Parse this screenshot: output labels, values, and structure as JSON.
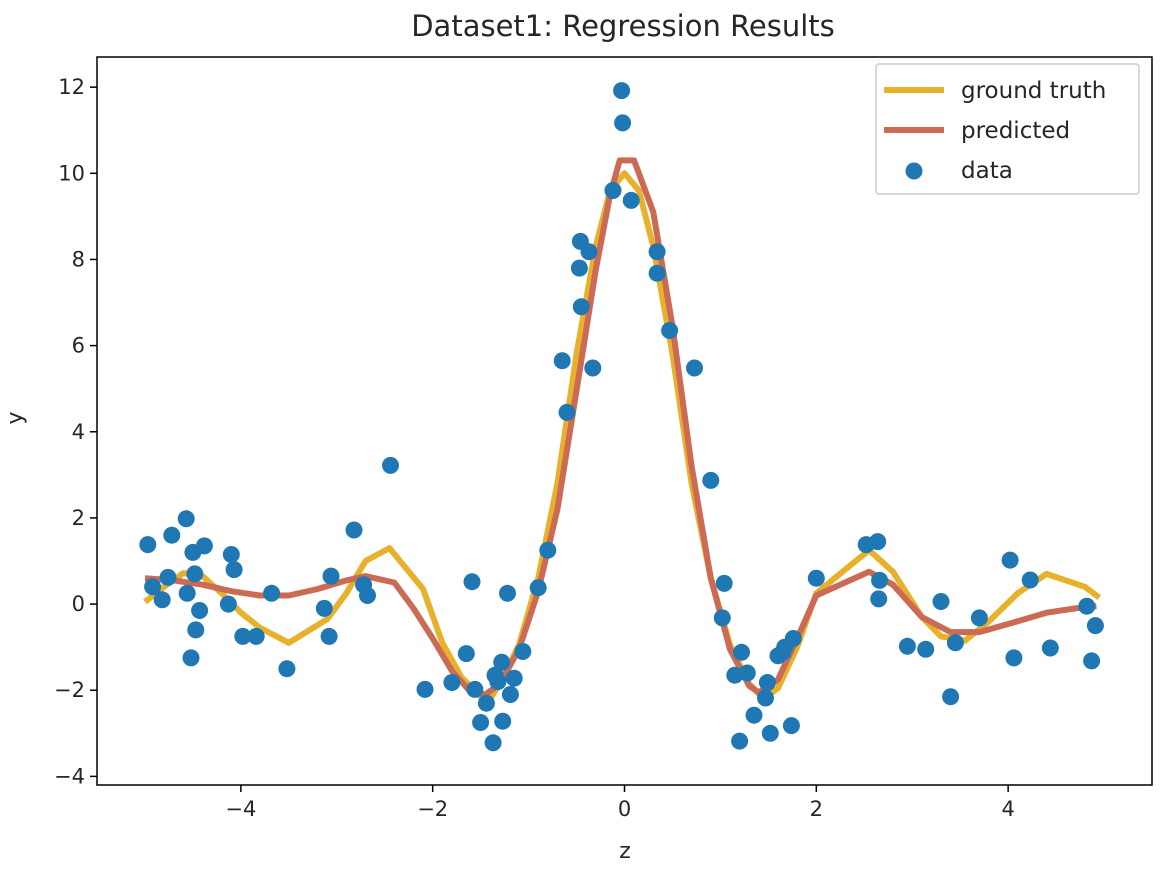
{
  "chart_data": {
    "type": "line",
    "title": "Dataset1: Regression Results",
    "xlabel": "z",
    "ylabel": "y",
    "xlim": [
      -5.5,
      5.5
    ],
    "ylim": [
      -4.2,
      12.7
    ],
    "x_ticks": [
      -4,
      -2,
      0,
      2,
      4
    ],
    "x_tick_labels": [
      "−4",
      "−2",
      "0",
      "2",
      "4"
    ],
    "y_ticks": [
      -4,
      -2,
      0,
      2,
      4,
      6,
      8,
      10,
      12
    ],
    "y_tick_labels": [
      "−4",
      "−2",
      "0",
      "2",
      "4",
      "6",
      "8",
      "10",
      "12"
    ],
    "grid": false,
    "legend_position": "top-right",
    "colors": {
      "ground_truth": "#e8b12b",
      "predicted": "#cc6b55",
      "data": "#1f77b4",
      "axes": "#000000"
    },
    "series": [
      {
        "name": "ground truth",
        "kind": "line",
        "points": [
          [
            -5.0,
            0.05
          ],
          [
            -4.8,
            0.4
          ],
          [
            -4.6,
            0.72
          ],
          [
            -4.4,
            0.65
          ],
          [
            -4.2,
            0.25
          ],
          [
            -4.0,
            -0.2
          ],
          [
            -3.8,
            -0.55
          ],
          [
            -3.5,
            -0.9
          ],
          [
            -3.1,
            -0.35
          ],
          [
            -2.9,
            0.25
          ],
          [
            -2.7,
            1.0
          ],
          [
            -2.45,
            1.3
          ],
          [
            -2.1,
            0.35
          ],
          [
            -1.9,
            -0.9
          ],
          [
            -1.7,
            -1.7
          ],
          [
            -1.5,
            -2.15
          ],
          [
            -1.4,
            -2.2
          ],
          [
            -1.3,
            -1.85
          ],
          [
            -1.1,
            -0.95
          ],
          [
            -0.9,
            0.6
          ],
          [
            -0.7,
            2.8
          ],
          [
            -0.5,
            5.8
          ],
          [
            -0.3,
            8.3
          ],
          [
            -0.15,
            9.6
          ],
          [
            0.0,
            10.0
          ],
          [
            0.15,
            9.6
          ],
          [
            0.3,
            8.3
          ],
          [
            0.5,
            5.8
          ],
          [
            0.7,
            2.8
          ],
          [
            0.9,
            0.6
          ],
          [
            1.1,
            -0.95
          ],
          [
            1.3,
            -1.85
          ],
          [
            1.45,
            -2.2
          ],
          [
            1.6,
            -1.95
          ],
          [
            1.8,
            -1.0
          ],
          [
            2.0,
            0.25
          ],
          [
            2.3,
            0.8
          ],
          [
            2.55,
            1.25
          ],
          [
            2.8,
            0.75
          ],
          [
            3.1,
            -0.3
          ],
          [
            3.3,
            -0.75
          ],
          [
            3.55,
            -0.85
          ],
          [
            3.8,
            -0.4
          ],
          [
            4.1,
            0.25
          ],
          [
            4.4,
            0.7
          ],
          [
            4.8,
            0.4
          ],
          [
            4.95,
            0.15
          ]
        ]
      },
      {
        "name": "predicted",
        "kind": "line",
        "points": [
          [
            -5.0,
            0.6
          ],
          [
            -4.7,
            0.55
          ],
          [
            -4.4,
            0.45
          ],
          [
            -4.1,
            0.3
          ],
          [
            -3.8,
            0.2
          ],
          [
            -3.5,
            0.2
          ],
          [
            -3.2,
            0.35
          ],
          [
            -2.9,
            0.55
          ],
          [
            -2.7,
            0.65
          ],
          [
            -2.4,
            0.5
          ],
          [
            -2.2,
            -0.1
          ],
          [
            -2.0,
            -0.8
          ],
          [
            -1.8,
            -1.55
          ],
          [
            -1.6,
            -2.05
          ],
          [
            -1.45,
            -2.1
          ],
          [
            -1.3,
            -1.85
          ],
          [
            -1.1,
            -1.05
          ],
          [
            -0.9,
            0.3
          ],
          [
            -0.7,
            2.2
          ],
          [
            -0.5,
            4.95
          ],
          [
            -0.3,
            7.75
          ],
          [
            -0.15,
            9.5
          ],
          [
            -0.05,
            10.3
          ],
          [
            0.1,
            10.3
          ],
          [
            0.3,
            9.1
          ],
          [
            0.5,
            6.45
          ],
          [
            0.7,
            3.2
          ],
          [
            0.9,
            0.6
          ],
          [
            1.1,
            -1.05
          ],
          [
            1.3,
            -1.9
          ],
          [
            1.4,
            -2.05
          ],
          [
            1.6,
            -1.75
          ],
          [
            1.8,
            -0.8
          ],
          [
            2.0,
            0.2
          ],
          [
            2.3,
            0.5
          ],
          [
            2.55,
            0.75
          ],
          [
            2.8,
            0.45
          ],
          [
            3.1,
            -0.3
          ],
          [
            3.4,
            -0.65
          ],
          [
            3.7,
            -0.65
          ],
          [
            4.1,
            -0.4
          ],
          [
            4.4,
            -0.2
          ],
          [
            4.7,
            -0.1
          ],
          [
            4.92,
            -0.05
          ]
        ]
      },
      {
        "name": "data",
        "kind": "scatter",
        "points": [
          [
            -4.97,
            1.38
          ],
          [
            -4.92,
            0.4
          ],
          [
            -4.82,
            0.1
          ],
          [
            -4.76,
            0.62
          ],
          [
            -4.72,
            1.6
          ],
          [
            -4.57,
            1.98
          ],
          [
            -4.56,
            0.25
          ],
          [
            -4.52,
            -1.25
          ],
          [
            -4.5,
            1.2
          ],
          [
            -4.48,
            0.7
          ],
          [
            -4.47,
            -0.6
          ],
          [
            -4.43,
            -0.15
          ],
          [
            -4.38,
            1.35
          ],
          [
            -4.13,
            0.0
          ],
          [
            -4.1,
            1.15
          ],
          [
            -4.07,
            0.8
          ],
          [
            -3.98,
            -0.75
          ],
          [
            -3.84,
            -0.75
          ],
          [
            -3.68,
            0.25
          ],
          [
            -3.52,
            -1.5
          ],
          [
            -3.13,
            -0.1
          ],
          [
            -3.08,
            -0.75
          ],
          [
            -3.06,
            0.65
          ],
          [
            -2.82,
            1.72
          ],
          [
            -2.72,
            0.45
          ],
          [
            -2.68,
            0.2
          ],
          [
            -2.44,
            3.22
          ],
          [
            -2.08,
            -1.98
          ],
          [
            -1.8,
            -1.82
          ],
          [
            -1.65,
            -1.15
          ],
          [
            -1.59,
            0.52
          ],
          [
            -1.56,
            -1.98
          ],
          [
            -1.5,
            -2.75
          ],
          [
            -1.44,
            -2.3
          ],
          [
            -1.37,
            -3.22
          ],
          [
            -1.35,
            -1.65
          ],
          [
            -1.32,
            -1.8
          ],
          [
            -1.28,
            -1.35
          ],
          [
            -1.27,
            -2.72
          ],
          [
            -1.22,
            0.25
          ],
          [
            -1.19,
            -2.1
          ],
          [
            -1.15,
            -1.72
          ],
          [
            -1.06,
            -1.1
          ],
          [
            -0.9,
            0.38
          ],
          [
            -0.8,
            1.25
          ],
          [
            -0.65,
            5.65
          ],
          [
            -0.6,
            4.45
          ],
          [
            -0.47,
            7.8
          ],
          [
            -0.46,
            8.42
          ],
          [
            -0.45,
            6.9
          ],
          [
            -0.37,
            8.18
          ],
          [
            -0.33,
            5.48
          ],
          [
            -0.12,
            9.6
          ],
          [
            -0.03,
            11.92
          ],
          [
            -0.02,
            11.17
          ],
          [
            0.07,
            9.37
          ],
          [
            0.34,
            8.18
          ],
          [
            0.34,
            7.68
          ],
          [
            0.47,
            6.35
          ],
          [
            0.73,
            5.48
          ],
          [
            0.9,
            2.87
          ],
          [
            1.02,
            -0.32
          ],
          [
            1.04,
            0.48
          ],
          [
            1.15,
            -1.65
          ],
          [
            1.2,
            -3.18
          ],
          [
            1.22,
            -1.12
          ],
          [
            1.28,
            -1.6
          ],
          [
            1.35,
            -2.58
          ],
          [
            1.47,
            -2.18
          ],
          [
            1.49,
            -1.82
          ],
          [
            1.52,
            -3.0
          ],
          [
            1.6,
            -1.2
          ],
          [
            1.65,
            -1.12
          ],
          [
            1.67,
            -1.0
          ],
          [
            1.74,
            -2.82
          ],
          [
            1.76,
            -0.8
          ],
          [
            2.0,
            0.6
          ],
          [
            2.52,
            1.38
          ],
          [
            2.64,
            1.45
          ],
          [
            2.65,
            0.12
          ],
          [
            2.66,
            0.55
          ],
          [
            2.95,
            -0.98
          ],
          [
            3.14,
            -1.05
          ],
          [
            3.3,
            0.06
          ],
          [
            3.4,
            -2.15
          ],
          [
            3.45,
            -0.9
          ],
          [
            3.7,
            -0.32
          ],
          [
            4.02,
            1.02
          ],
          [
            4.06,
            -1.25
          ],
          [
            4.23,
            0.56
          ],
          [
            4.44,
            -1.02
          ],
          [
            4.82,
            -0.05
          ],
          [
            4.87,
            -1.32
          ],
          [
            4.91,
            -0.5
          ]
        ]
      }
    ]
  }
}
